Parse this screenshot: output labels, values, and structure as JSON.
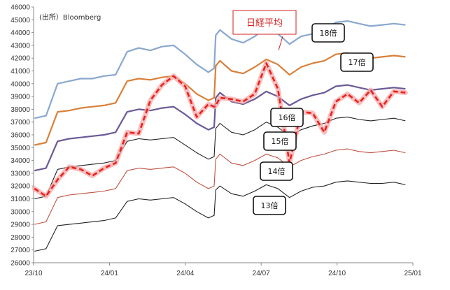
{
  "chart_data": {
    "type": "line",
    "source": "(出所）Bloomberg",
    "x_ticks": [
      "23/10",
      "24/01",
      "24/04",
      "24/07",
      "24/10",
      "25/01"
    ],
    "x_range": [
      "2023-10-01",
      "2025-01-01"
    ],
    "ylim": [
      26000,
      46000
    ],
    "y_ticks": [
      26000,
      27000,
      28000,
      29000,
      30000,
      31000,
      32000,
      33000,
      34000,
      35000,
      36000,
      37000,
      38000,
      39000,
      40000,
      41000,
      42000,
      43000,
      44000,
      45000,
      46000
    ],
    "grid": false,
    "x_dates": [
      "2023-10-02",
      "2023-10-16",
      "2023-10-30",
      "2023-11-13",
      "2023-11-27",
      "2023-12-11",
      "2023-12-25",
      "2024-01-08",
      "2024-01-22",
      "2024-02-05",
      "2024-02-19",
      "2024-03-04",
      "2024-03-18",
      "2024-04-01",
      "2024-04-15",
      "2024-04-29",
      "2024-05-06",
      "2024-05-08",
      "2024-05-13",
      "2024-05-27",
      "2024-06-10",
      "2024-06-24",
      "2024-07-08",
      "2024-07-22",
      "2024-08-05",
      "2024-08-19",
      "2024-09-02",
      "2024-09-16",
      "2024-09-30",
      "2024-10-14",
      "2024-10-28",
      "2024-11-11",
      "2024-11-25",
      "2024-12-09",
      "2024-12-23"
    ],
    "series": [
      {
        "name": "18倍",
        "color": "#8aa8d0",
        "values": [
          37300,
          37500,
          40000,
          40200,
          40400,
          40400,
          40600,
          40700,
          42500,
          42800,
          42600,
          42900,
          43000,
          42300,
          41500,
          40900,
          41200,
          43800,
          44200,
          43500,
          43200,
          43700,
          44400,
          43900,
          43100,
          43700,
          43900,
          44200,
          44800,
          44900,
          44700,
          44500,
          44600,
          44700,
          44600
        ]
      },
      {
        "name": "17倍",
        "color": "#d9803a",
        "values": [
          35200,
          35400,
          37800,
          37900,
          38100,
          38200,
          38300,
          38500,
          40200,
          40400,
          40300,
          40500,
          40600,
          40000,
          39200,
          38700,
          38900,
          41400,
          41800,
          41000,
          40800,
          41300,
          41900,
          41500,
          40700,
          41300,
          41600,
          41800,
          42300,
          42400,
          42200,
          42000,
          42100,
          42200,
          42100
        ]
      },
      {
        "name": "16倍",
        "color": "#6b5a97",
        "values": [
          33200,
          33400,
          35500,
          35700,
          35800,
          35900,
          36000,
          36200,
          37800,
          38000,
          37900,
          38100,
          38200,
          37600,
          36900,
          36400,
          36600,
          38900,
          39300,
          38600,
          38400,
          38800,
          39400,
          39000,
          38300,
          38800,
          39100,
          39300,
          39800,
          39900,
          39700,
          39500,
          39600,
          39700,
          39600
        ]
      },
      {
        "name": "15倍",
        "color": "#222222",
        "values": [
          31000,
          31200,
          33300,
          33500,
          33600,
          33700,
          33800,
          34000,
          35500,
          35700,
          35600,
          35700,
          35800,
          35200,
          34600,
          34100,
          34300,
          36500,
          36900,
          36200,
          36000,
          36400,
          37000,
          36600,
          35900,
          36400,
          36700,
          36900,
          37300,
          37400,
          37200,
          37100,
          37200,
          37300,
          37100
        ]
      },
      {
        "name": "14倍",
        "color": "#c05040",
        "values": [
          29000,
          29200,
          31100,
          31300,
          31400,
          31500,
          31600,
          31800,
          33200,
          33400,
          33300,
          33400,
          33500,
          33000,
          32300,
          31800,
          32000,
          34100,
          34500,
          33800,
          33600,
          34000,
          34500,
          34200,
          33500,
          34000,
          34300,
          34500,
          34800,
          34900,
          34700,
          34600,
          34700,
          34800,
          34600
        ]
      },
      {
        "name": "13倍",
        "color": "#222222",
        "values": [
          26900,
          27100,
          28900,
          29000,
          29100,
          29200,
          29300,
          29500,
          30800,
          31000,
          30900,
          31000,
          31100,
          30600,
          30000,
          29500,
          29700,
          31700,
          32000,
          31400,
          31200,
          31600,
          32100,
          31800,
          31100,
          31600,
          31900,
          32000,
          32300,
          32400,
          32300,
          32200,
          32200,
          32300,
          32100
        ]
      },
      {
        "name": "日経平均",
        "color": "#e8221e",
        "values": [
          31800,
          31200,
          32500,
          33500,
          33300,
          32800,
          33400,
          33800,
          36200,
          36100,
          38700,
          39900,
          40600,
          39800,
          37400,
          38400,
          38200,
          38300,
          38900,
          38800,
          38600,
          39200,
          41600,
          39600,
          33800,
          37800,
          37700,
          36200,
          38600,
          39200,
          38500,
          39500,
          38200,
          39400,
          39300
        ]
      }
    ],
    "annotations": {
      "nikkei_label": "日経平均",
      "multiple_labels": [
        "18倍",
        "17倍",
        "16倍",
        "15倍",
        "14倍",
        "13倍"
      ]
    }
  }
}
